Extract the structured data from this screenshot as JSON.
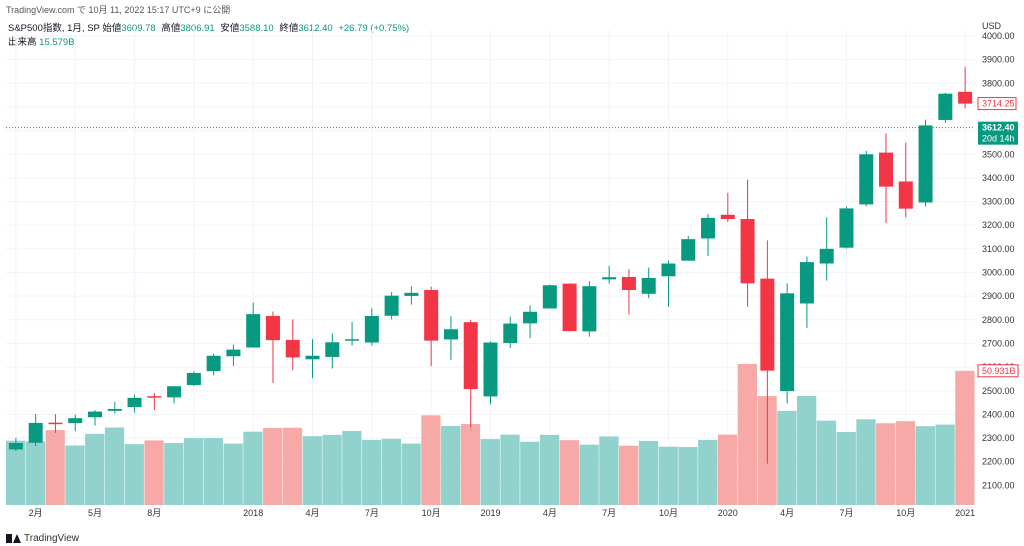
{
  "header": {
    "text": "TradingView.com で 10月 11, 2022 15:17 UTC+9 に公開"
  },
  "legend": {
    "symbol": "S&P500指数, 1月, SP",
    "open_label": "始値",
    "open": "3609.78",
    "high_label": "高値",
    "high": "3806.91",
    "low_label": "安値",
    "low": "3588.10",
    "close_label": "終値",
    "close": "3612.40",
    "change": "+26.79 (+0.75%)",
    "volume_label": "出来高",
    "volume": "15.579B"
  },
  "price_axis": {
    "currency": "USD",
    "ticks": [
      "4000.00",
      "3900.00",
      "3800.00",
      "3700.00",
      "3600.00",
      "3500.00",
      "3400.00",
      "3300.00",
      "3200.00",
      "3100.00",
      "3000.00",
      "2900.00",
      "2800.00",
      "2700.00",
      "2600.00",
      "2500.00",
      "2400.00",
      "2300.00",
      "2200.00",
      "2100.00"
    ],
    "prev_close_label": "3714.25",
    "last_price_label": "3612.40",
    "countdown_label": "20d 14h",
    "volume_label": "50.931B"
  },
  "time_axis": {
    "labels": [
      "2月",
      "5月",
      "8月",
      "2018",
      "4月",
      "7月",
      "10月",
      "2019",
      "4月",
      "7月",
      "10月",
      "2020",
      "4月",
      "7月",
      "10月",
      "2021"
    ]
  },
  "footer": {
    "brand": "TradingView"
  },
  "colors": {
    "up": "#089981",
    "down": "#f23645",
    "vol_up": "#92d2cc",
    "vol_down": "#f7a9a7",
    "grid": "#f0f3fa"
  },
  "chart_data": {
    "type": "candlestick",
    "title": "S&P500指数, 1月, SP",
    "x": [
      "2017-01",
      "2017-02",
      "2017-03",
      "2017-04",
      "2017-05",
      "2017-06",
      "2017-07",
      "2017-08",
      "2017-09",
      "2017-10",
      "2017-11",
      "2017-12",
      "2018-01",
      "2018-02",
      "2018-03",
      "2018-04",
      "2018-05",
      "2018-06",
      "2018-07",
      "2018-08",
      "2018-09",
      "2018-10",
      "2018-11",
      "2018-12",
      "2019-01",
      "2019-02",
      "2019-03",
      "2019-04",
      "2019-05",
      "2019-06",
      "2019-07",
      "2019-08",
      "2019-09",
      "2019-10",
      "2019-11",
      "2019-12",
      "2020-01",
      "2020-02",
      "2020-03",
      "2020-04",
      "2020-05",
      "2020-06",
      "2020-07",
      "2020-08",
      "2020-09",
      "2020-10",
      "2020-11",
      "2020-12",
      "2021-01"
    ],
    "open": [
      2252,
      2280,
      2365,
      2363,
      2388,
      2415,
      2431,
      2477,
      2472,
      2524,
      2583,
      2646,
      2683,
      2816,
      2715,
      2633,
      2643,
      2718,
      2704,
      2817,
      2901,
      2926,
      2717,
      2790,
      2476,
      2702,
      2785,
      2848,
      2953,
      2751,
      2971,
      2981,
      2910,
      2984,
      3050,
      3144,
      3244,
      3226,
      2974,
      2499,
      2869,
      3038,
      3105,
      3288,
      3507,
      3385,
      3296,
      3645,
      3764
    ],
    "high": [
      2301,
      2401,
      2401,
      2399,
      2418,
      2453,
      2484,
      2491,
      2519,
      2582,
      2657,
      2695,
      2873,
      2835,
      2802,
      2718,
      2742,
      2791,
      2848,
      2917,
      2941,
      2940,
      2815,
      2800,
      2708,
      2813,
      2861,
      2949,
      2954,
      2964,
      3028,
      3014,
      3021,
      3050,
      3154,
      3247,
      3337,
      3393,
      3136,
      2954,
      3068,
      3233,
      3279,
      3514,
      3588,
      3549,
      3646,
      3760,
      3870
    ],
    "low": [
      2245,
      2266,
      2322,
      2329,
      2353,
      2404,
      2408,
      2418,
      2446,
      2520,
      2566,
      2605,
      2682,
      2533,
      2586,
      2553,
      2594,
      2691,
      2691,
      2802,
      2864,
      2604,
      2631,
      2346,
      2443,
      2681,
      2722,
      2848,
      2750,
      2729,
      2953,
      2822,
      2891,
      2855,
      3050,
      3070,
      3214,
      2855,
      2192,
      2447,
      2766,
      2966,
      3101,
      3280,
      3209,
      3233,
      3279,
      3633,
      3694
    ],
    "close": [
      2279,
      2364,
      2363,
      2384,
      2412,
      2423,
      2470,
      2472,
      2519,
      2575,
      2648,
      2674,
      2824,
      2714,
      2641,
      2648,
      2705,
      2718,
      2816,
      2902,
      2914,
      2712,
      2760,
      2507,
      2704,
      2784,
      2834,
      2946,
      2752,
      2942,
      2980,
      2926,
      2977,
      3038,
      3141,
      3231,
      3226,
      2954,
      2585,
      2912,
      3044,
      3100,
      3271,
      3500,
      3363,
      3270,
      3622,
      3756,
      3714
    ],
    "volume_billions": [
      24.4,
      24.1,
      28.4,
      22.6,
      27.0,
      29.4,
      23.1,
      24.5,
      23.5,
      25.4,
      25.4,
      23.3,
      27.8,
      29.2,
      29.3,
      26.1,
      26.6,
      28.1,
      24.7,
      25.1,
      23.3,
      34.0,
      30.0,
      30.7,
      25.0,
      26.7,
      24.0,
      26.6,
      24.6,
      22.9,
      26.0,
      22.5,
      24.3,
      22.1,
      22.0,
      24.7,
      26.7,
      53.5,
      41.3,
      35.7,
      41.4,
      32.0,
      27.7,
      32.5,
      31.0,
      31.8,
      29.9,
      30.5,
      50.9
    ]
  }
}
